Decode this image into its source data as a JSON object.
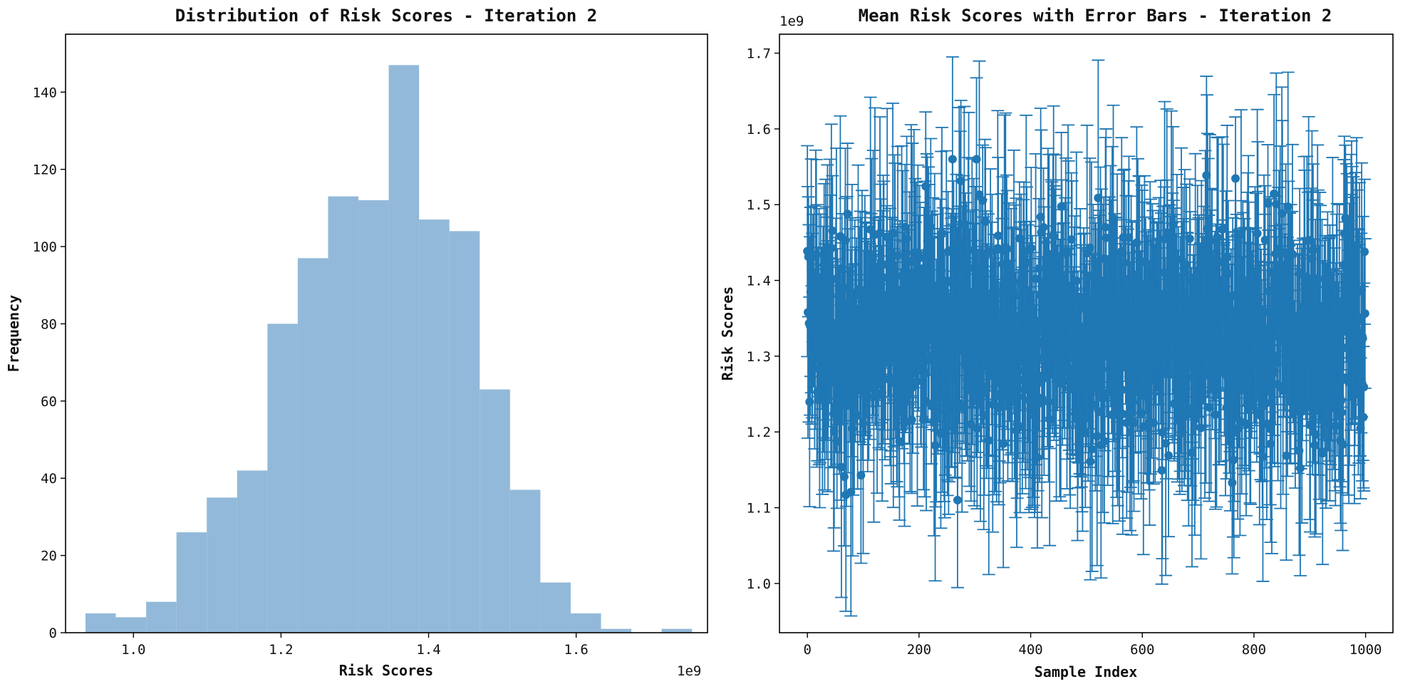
{
  "chart_data": [
    {
      "type": "bar",
      "subtype": "histogram",
      "title": "Distribution of Risk Scores - Iteration 2",
      "xlabel": "Risk Scores",
      "ylabel": "Frequency",
      "x_offset_label": "1e9",
      "bar_color": "#92b9d9",
      "xlim": [
        0.908,
        1.778
      ],
      "ylim": [
        0,
        155
      ],
      "xticks": [
        1.0,
        1.2,
        1.4,
        1.6
      ],
      "xtick_labels": [
        "1.0",
        "1.2",
        "1.4",
        "1.6"
      ],
      "yticks": [
        0,
        20,
        40,
        60,
        80,
        100,
        120,
        140
      ],
      "ytick_labels": [
        "0",
        "20",
        "40",
        "60",
        "80",
        "100",
        "120",
        "140"
      ],
      "bins": [
        {
          "x0": 0.935,
          "x1": 0.9761,
          "count": 5
        },
        {
          "x0": 0.9761,
          "x1": 1.0172,
          "count": 4
        },
        {
          "x0": 1.0172,
          "x1": 1.0583,
          "count": 8
        },
        {
          "x0": 1.0583,
          "x1": 1.0994,
          "count": 26
        },
        {
          "x0": 1.0994,
          "x1": 1.1405,
          "count": 35
        },
        {
          "x0": 1.1405,
          "x1": 1.1816,
          "count": 42
        },
        {
          "x0": 1.1816,
          "x1": 1.2227,
          "count": 80
        },
        {
          "x0": 1.2227,
          "x1": 1.2638,
          "count": 97
        },
        {
          "x0": 1.2638,
          "x1": 1.3049,
          "count": 113
        },
        {
          "x0": 1.3049,
          "x1": 1.346,
          "count": 112
        },
        {
          "x0": 1.346,
          "x1": 1.3871,
          "count": 147
        },
        {
          "x0": 1.3871,
          "x1": 1.4282,
          "count": 107
        },
        {
          "x0": 1.4282,
          "x1": 1.4693,
          "count": 104
        },
        {
          "x0": 1.4693,
          "x1": 1.5104,
          "count": 63
        },
        {
          "x0": 1.5104,
          "x1": 1.5515,
          "count": 37
        },
        {
          "x0": 1.5515,
          "x1": 1.5926,
          "count": 13
        },
        {
          "x0": 1.5926,
          "x1": 1.6337,
          "count": 5
        },
        {
          "x0": 1.6337,
          "x1": 1.6748,
          "count": 1
        },
        {
          "x0": 1.6748,
          "x1": 1.7159,
          "count": 0
        },
        {
          "x0": 1.7159,
          "x1": 1.757,
          "count": 1
        }
      ]
    },
    {
      "type": "scatter",
      "subtype": "errorbar",
      "title": "Mean Risk Scores with Error Bars - Iteration 2",
      "xlabel": "Sample Index",
      "ylabel": "Risk Scores",
      "y_offset_label": "1e9",
      "color": "#1f77b4",
      "n_points": 1000,
      "mean_center": 1.33,
      "mean_spread": 0.075,
      "err_typical": 0.13,
      "seed": 7,
      "xlim": [
        -50,
        1049
      ],
      "ylim": [
        0.935,
        1.725
      ],
      "xticks": [
        0,
        200,
        400,
        600,
        800,
        1000
      ],
      "xtick_labels": [
        "0",
        "200",
        "400",
        "600",
        "800",
        "1000"
      ],
      "yticks": [
        1.0,
        1.1,
        1.2,
        1.3,
        1.4,
        1.5,
        1.6,
        1.7
      ],
      "ytick_labels": [
        "1.0",
        "1.1",
        "1.2",
        "1.3",
        "1.4",
        "1.5",
        "1.6",
        "1.7"
      ]
    }
  ]
}
